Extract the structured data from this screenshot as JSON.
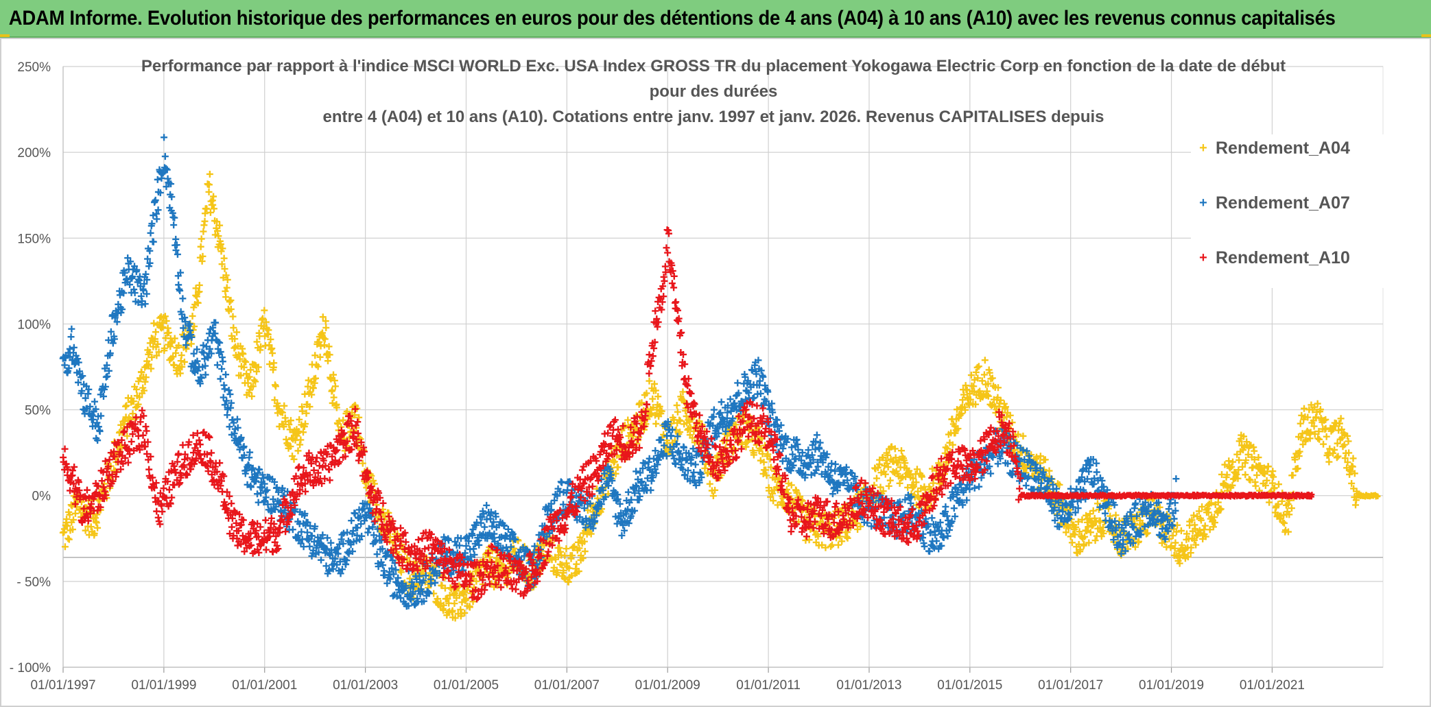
{
  "header": {
    "banner": "ADAM Informe. Evolution historique des performances en euros pour des détentions de 4 ans (A04) à 10 ans (A10) avec les revenus connus capitalisés"
  },
  "colors": {
    "A04": "#f5c518",
    "A07": "#1f77c0",
    "A10": "#e8161b",
    "banner_bg": "#7fcc7f",
    "grid": "#d0d0d0"
  },
  "chart_data": {
    "type": "scatter",
    "title_lines": [
      "Performance par rapport à l'indice MSCI WORLD Exc. USA Index GROSS TR  du placement Yokogawa Electric Corp en fonction de la date de début",
      "pour des durées",
      "entre 4 (A04) et 10 ans (A10). Cotations entre janv. 1997 et janv. 2026. Revenus CAPITALISES depuis"
    ],
    "xlabel": "",
    "ylabel": "",
    "xlim": [
      1997.0,
      2023.2
    ],
    "ylim": [
      -100,
      250
    ],
    "y_ticks": [
      {
        "value": 250,
        "label": "250%"
      },
      {
        "value": 200,
        "label": "200%"
      },
      {
        "value": 150,
        "label": "150%"
      },
      {
        "value": 100,
        "label": "100%"
      },
      {
        "value": 50,
        "label": "50%"
      },
      {
        "value": 0,
        "label": "0%"
      },
      {
        "value": -50,
        "label": "- 50%"
      },
      {
        "value": -100,
        "label": "- 100%"
      }
    ],
    "x_ticks": [
      {
        "value": 1997,
        "label": "01/01/1997"
      },
      {
        "value": 1999,
        "label": "01/01/1999"
      },
      {
        "value": 2001,
        "label": "01/01/2001"
      },
      {
        "value": 2003,
        "label": "01/01/2003"
      },
      {
        "value": 2005,
        "label": "01/01/2005"
      },
      {
        "value": 2007,
        "label": "01/01/2007"
      },
      {
        "value": 2009,
        "label": "01/01/2009"
      },
      {
        "value": 2011,
        "label": "01/01/2011"
      },
      {
        "value": 2013,
        "label": "01/01/2013"
      },
      {
        "value": 2015,
        "label": "01/01/2015"
      },
      {
        "value": 2017,
        "label": "01/01/2017"
      },
      {
        "value": 2019,
        "label": "01/01/2019"
      },
      {
        "value": 2021,
        "label": "01/01/2021"
      }
    ],
    "extra_gridline": -36,
    "marker": "+",
    "legend": {
      "position": "right",
      "entries": [
        "Rendement_A04",
        "Rendement_A07",
        "Rendement_A10"
      ]
    },
    "series": [
      {
        "name": "Rendement_A04",
        "color": "#f5c518",
        "points": [
          [
            1997.0,
            -25
          ],
          [
            1997.3,
            -5
          ],
          [
            1997.6,
            -15
          ],
          [
            1997.9,
            10
          ],
          [
            1998.2,
            40
          ],
          [
            1998.5,
            60
          ],
          [
            1998.8,
            90
          ],
          [
            1999.0,
            95
          ],
          [
            1999.3,
            80
          ],
          [
            1999.6,
            100
          ],
          [
            1999.9,
            180
          ],
          [
            2000.1,
            150
          ],
          [
            2000.4,
            90
          ],
          [
            2000.7,
            60
          ],
          [
            2001.0,
            100
          ],
          [
            2001.3,
            50
          ],
          [
            2001.6,
            30
          ],
          [
            2001.9,
            60
          ],
          [
            2002.2,
            100
          ],
          [
            2002.5,
            30
          ],
          [
            2002.8,
            50
          ],
          [
            2003.0,
            10
          ],
          [
            2003.3,
            -10
          ],
          [
            2003.6,
            -30
          ],
          [
            2003.9,
            -50
          ],
          [
            2004.2,
            -45
          ],
          [
            2004.5,
            -55
          ],
          [
            2004.8,
            -65
          ],
          [
            2005.1,
            -55
          ],
          [
            2005.4,
            -40
          ],
          [
            2005.7,
            -45
          ],
          [
            2006.0,
            -35
          ],
          [
            2006.3,
            -45
          ],
          [
            2006.6,
            -30
          ],
          [
            2006.9,
            -40
          ],
          [
            2007.2,
            -40
          ],
          [
            2007.5,
            -10
          ],
          [
            2007.8,
            10
          ],
          [
            2008.1,
            30
          ],
          [
            2008.4,
            40
          ],
          [
            2008.7,
            60
          ],
          [
            2009.0,
            30
          ],
          [
            2009.3,
            50
          ],
          [
            2009.6,
            40
          ],
          [
            2009.9,
            10
          ],
          [
            2010.2,
            30
          ],
          [
            2010.5,
            40
          ],
          [
            2010.8,
            30
          ],
          [
            2011.1,
            5
          ],
          [
            2011.4,
            0
          ],
          [
            2011.7,
            -15
          ],
          [
            2012.0,
            -20
          ],
          [
            2012.3,
            -20
          ],
          [
            2012.6,
            -15
          ],
          [
            2012.9,
            -5
          ],
          [
            2013.2,
            10
          ],
          [
            2013.5,
            20
          ],
          [
            2013.8,
            10
          ],
          [
            2014.1,
            0
          ],
          [
            2014.4,
            10
          ],
          [
            2014.7,
            40
          ],
          [
            2015.0,
            60
          ],
          [
            2015.3,
            70
          ],
          [
            2015.6,
            50
          ],
          [
            2015.9,
            30
          ],
          [
            2016.2,
            20
          ],
          [
            2016.5,
            10
          ],
          [
            2016.8,
            -5
          ],
          [
            2017.1,
            -25
          ],
          [
            2017.4,
            -20
          ],
          [
            2017.7,
            -10
          ],
          [
            2018.0,
            -25
          ],
          [
            2018.3,
            -20
          ],
          [
            2018.6,
            -10
          ],
          [
            2018.9,
            -20
          ],
          [
            2019.2,
            -30
          ],
          [
            2019.5,
            -20
          ],
          [
            2019.8,
            -10
          ],
          [
            2020.1,
            10
          ],
          [
            2020.4,
            25
          ],
          [
            2020.7,
            15
          ],
          [
            2021.0,
            5
          ],
          [
            2021.3,
            -15
          ],
          [
            2021.6,
            40
          ],
          [
            2021.9,
            45
          ],
          [
            2022.1,
            30
          ],
          [
            2022.4,
            35
          ],
          [
            2022.7,
            0
          ],
          [
            2023.1,
            0
          ]
        ]
      },
      {
        "name": "Rendement_A07",
        "color": "#1f77c0",
        "points": [
          [
            1997.0,
            70
          ],
          [
            1997.2,
            90
          ],
          [
            1997.4,
            60
          ],
          [
            1997.7,
            40
          ],
          [
            1998.0,
            100
          ],
          [
            1998.3,
            130
          ],
          [
            1998.6,
            115
          ],
          [
            1998.9,
            180
          ],
          [
            1999.0,
            200
          ],
          [
            1999.2,
            160
          ],
          [
            1999.4,
            100
          ],
          [
            1999.7,
            70
          ],
          [
            2000.0,
            95
          ],
          [
            2000.3,
            50
          ],
          [
            2000.6,
            20
          ],
          [
            2000.9,
            5
          ],
          [
            2001.2,
            0
          ],
          [
            2001.5,
            -10
          ],
          [
            2001.8,
            -20
          ],
          [
            2002.1,
            -30
          ],
          [
            2002.4,
            -40
          ],
          [
            2002.7,
            -25
          ],
          [
            2003.0,
            -10
          ],
          [
            2003.3,
            -35
          ],
          [
            2003.6,
            -50
          ],
          [
            2003.9,
            -55
          ],
          [
            2004.2,
            -50
          ],
          [
            2004.5,
            -35
          ],
          [
            2004.8,
            -35
          ],
          [
            2005.1,
            -30
          ],
          [
            2005.4,
            -15
          ],
          [
            2005.7,
            -25
          ],
          [
            2006.0,
            -35
          ],
          [
            2006.3,
            -45
          ],
          [
            2006.6,
            -15
          ],
          [
            2006.9,
            0
          ],
          [
            2007.2,
            -5
          ],
          [
            2007.5,
            -10
          ],
          [
            2007.8,
            10
          ],
          [
            2008.1,
            -15
          ],
          [
            2008.4,
            5
          ],
          [
            2008.7,
            15
          ],
          [
            2009.0,
            35
          ],
          [
            2009.3,
            20
          ],
          [
            2009.6,
            15
          ],
          [
            2009.9,
            40
          ],
          [
            2010.2,
            50
          ],
          [
            2010.5,
            60
          ],
          [
            2010.8,
            70
          ],
          [
            2011.1,
            40
          ],
          [
            2011.4,
            25
          ],
          [
            2011.7,
            20
          ],
          [
            2012.0,
            25
          ],
          [
            2012.3,
            10
          ],
          [
            2012.6,
            5
          ],
          [
            2012.9,
            -5
          ],
          [
            2013.2,
            -10
          ],
          [
            2013.5,
            -15
          ],
          [
            2013.8,
            -10
          ],
          [
            2014.1,
            -20
          ],
          [
            2014.4,
            -25
          ],
          [
            2014.7,
            -5
          ],
          [
            2015.0,
            10
          ],
          [
            2015.3,
            20
          ],
          [
            2015.6,
            30
          ],
          [
            2015.9,
            20
          ],
          [
            2016.2,
            15
          ],
          [
            2016.5,
            5
          ],
          [
            2016.8,
            -10
          ],
          [
            2017.1,
            -5
          ],
          [
            2017.4,
            15
          ],
          [
            2017.7,
            -5
          ],
          [
            2018.0,
            -25
          ],
          [
            2018.3,
            -15
          ],
          [
            2018.6,
            -5
          ],
          [
            2018.9,
            -20
          ],
          [
            2019.1,
            0
          ]
        ]
      },
      {
        "name": "Rendement_A10",
        "color": "#e8161b",
        "points": [
          [
            1997.0,
            20
          ],
          [
            1997.2,
            10
          ],
          [
            1997.4,
            -10
          ],
          [
            1997.7,
            0
          ],
          [
            1998.0,
            20
          ],
          [
            1998.3,
            30
          ],
          [
            1998.6,
            40
          ],
          [
            1998.9,
            -10
          ],
          [
            1999.2,
            10
          ],
          [
            1999.5,
            25
          ],
          [
            1999.8,
            30
          ],
          [
            2000.1,
            10
          ],
          [
            2000.4,
            -20
          ],
          [
            2000.7,
            -25
          ],
          [
            2001.0,
            -25
          ],
          [
            2001.3,
            -20
          ],
          [
            2001.6,
            5
          ],
          [
            2001.9,
            15
          ],
          [
            2002.2,
            15
          ],
          [
            2002.5,
            30
          ],
          [
            2002.8,
            40
          ],
          [
            2003.1,
            0
          ],
          [
            2003.4,
            -15
          ],
          [
            2003.7,
            -30
          ],
          [
            2004.0,
            -35
          ],
          [
            2004.3,
            -30
          ],
          [
            2004.6,
            -40
          ],
          [
            2004.9,
            -45
          ],
          [
            2005.2,
            -50
          ],
          [
            2005.5,
            -40
          ],
          [
            2005.8,
            -45
          ],
          [
            2006.1,
            -50
          ],
          [
            2006.4,
            -40
          ],
          [
            2006.7,
            -20
          ],
          [
            2007.0,
            -10
          ],
          [
            2007.3,
            5
          ],
          [
            2007.6,
            15
          ],
          [
            2007.9,
            35
          ],
          [
            2008.2,
            30
          ],
          [
            2008.5,
            40
          ],
          [
            2008.7,
            90
          ],
          [
            2008.9,
            120
          ],
          [
            2009.0,
            150
          ],
          [
            2009.2,
            100
          ],
          [
            2009.4,
            60
          ],
          [
            2009.7,
            30
          ],
          [
            2010.0,
            20
          ],
          [
            2010.3,
            30
          ],
          [
            2010.6,
            45
          ],
          [
            2010.9,
            40
          ],
          [
            2011.2,
            20
          ],
          [
            2011.4,
            -10
          ],
          [
            2011.7,
            -15
          ],
          [
            2012.0,
            -10
          ],
          [
            2012.3,
            -15
          ],
          [
            2012.6,
            -10
          ],
          [
            2012.9,
            0
          ],
          [
            2013.2,
            -10
          ],
          [
            2013.5,
            -15
          ],
          [
            2013.8,
            -20
          ],
          [
            2014.1,
            -10
          ],
          [
            2014.4,
            10
          ],
          [
            2014.7,
            20
          ],
          [
            2015.0,
            15
          ],
          [
            2015.3,
            25
          ],
          [
            2015.6,
            40
          ],
          [
            2015.9,
            30
          ],
          [
            2016.0,
            0
          ],
          [
            2017.0,
            0
          ],
          [
            2018.0,
            0
          ],
          [
            2019.0,
            0
          ],
          [
            2020.0,
            0
          ],
          [
            2021.0,
            0
          ],
          [
            2021.8,
            0
          ]
        ]
      }
    ]
  }
}
